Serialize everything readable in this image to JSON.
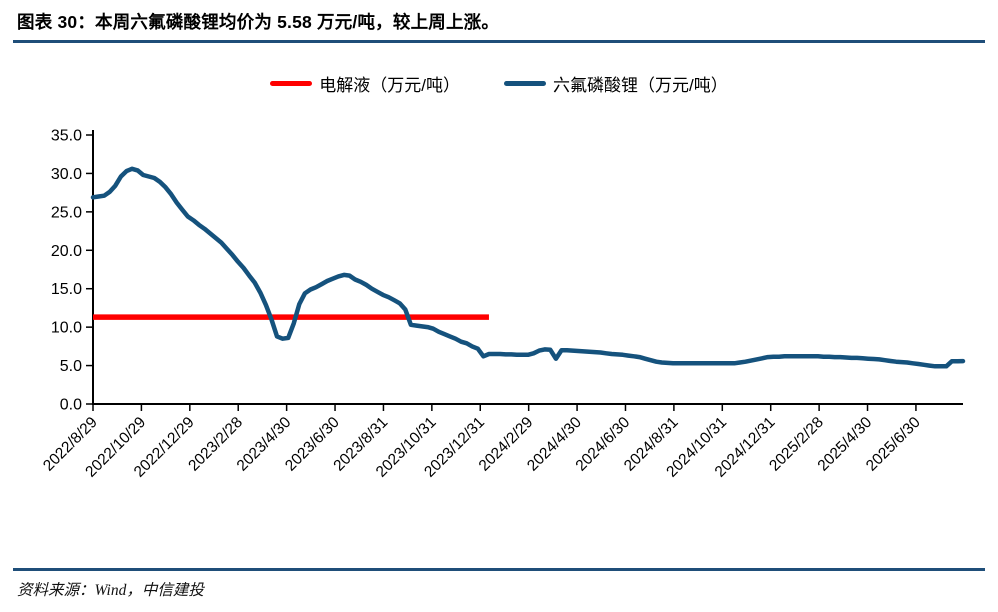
{
  "figure": {
    "label": "图表 30：",
    "title": "本周六氟磷酸锂均价为 5.58 万元/吨，较上周上涨。"
  },
  "source_note": "资料来源：Wind，中信建投",
  "colors": {
    "rule_navy": "#1F4E79",
    "electrolyte_red": "#FF0000",
    "lipf6_blue": "#15527D",
    "axis_black": "#000000"
  },
  "chart_data": {
    "type": "line",
    "title": "",
    "xlabel": "",
    "ylabel": "",
    "ylim": [
      0,
      35
    ],
    "ytick_step": 5,
    "y_tick_labels": [
      "0.0",
      "5.0",
      "10.0",
      "15.0",
      "20.0",
      "25.0",
      "30.0",
      "35.0"
    ],
    "grid": false,
    "legend_position": "top-center",
    "x_unit": "weekly observations, 2022/8/29 through late 2025/8",
    "x_tick_labels": [
      "2022/8/29",
      "2022/10/29",
      "2022/12/29",
      "2023/2/28",
      "2023/4/30",
      "2023/6/30",
      "2023/8/31",
      "2023/10/31",
      "2023/12/31",
      "2024/2/29",
      "2024/4/30",
      "2024/6/30",
      "2024/8/31",
      "2024/10/31",
      "2024/12/31",
      "2025/2/28",
      "2025/4/30",
      "2025/6/30"
    ],
    "weeks_per_x_tick": 8.68,
    "series": [
      {
        "name": "电解液（万元/吨）",
        "color": "#FF0000",
        "style": "flat-segment",
        "value": 11.3,
        "week_start": 0,
        "week_end": 71
      },
      {
        "name": "六氟磷酸锂（万元/吨）",
        "color": "#15527D",
        "style": "line",
        "week_start": 0,
        "latest_value": 5.58,
        "values": [
          26.9,
          27.0,
          27.1,
          27.6,
          28.4,
          29.6,
          30.3,
          30.6,
          30.4,
          29.8,
          29.6,
          29.4,
          28.9,
          28.2,
          27.3,
          26.2,
          25.3,
          24.4,
          23.9,
          23.3,
          22.8,
          22.2,
          21.6,
          21.0,
          20.2,
          19.4,
          18.5,
          17.7,
          16.7,
          15.8,
          14.5,
          12.9,
          11.0,
          8.8,
          8.5,
          8.6,
          10.5,
          13.0,
          14.4,
          14.9,
          15.2,
          15.6,
          16.0,
          16.3,
          16.6,
          16.8,
          16.7,
          16.2,
          15.9,
          15.5,
          15.0,
          14.6,
          14.2,
          13.9,
          13.5,
          13.1,
          12.3,
          10.3,
          10.2,
          10.1,
          10.0,
          9.8,
          9.4,
          9.1,
          8.8,
          8.5,
          8.1,
          7.9,
          7.5,
          7.2,
          6.2,
          6.5,
          6.5,
          6.5,
          6.45,
          6.45,
          6.4,
          6.4,
          6.4,
          6.6,
          6.95,
          7.1,
          7.05,
          5.9,
          7.0,
          7.0,
          6.95,
          6.9,
          6.85,
          6.8,
          6.75,
          6.7,
          6.6,
          6.5,
          6.45,
          6.4,
          6.3,
          6.2,
          6.1,
          5.9,
          5.7,
          5.5,
          5.4,
          5.35,
          5.3,
          5.3,
          5.3,
          5.3,
          5.3,
          5.3,
          5.3,
          5.3,
          5.3,
          5.3,
          5.3,
          5.3,
          5.4,
          5.5,
          5.65,
          5.8,
          5.95,
          6.1,
          6.15,
          6.15,
          6.2,
          6.2,
          6.2,
          6.2,
          6.2,
          6.2,
          6.2,
          6.15,
          6.15,
          6.1,
          6.1,
          6.05,
          6.0,
          6.0,
          5.95,
          5.9,
          5.85,
          5.8,
          5.7,
          5.6,
          5.5,
          5.45,
          5.4,
          5.3,
          5.2,
          5.1,
          5.0,
          4.9,
          4.9,
          4.9,
          5.55,
          5.55,
          5.58
        ]
      }
    ]
  }
}
